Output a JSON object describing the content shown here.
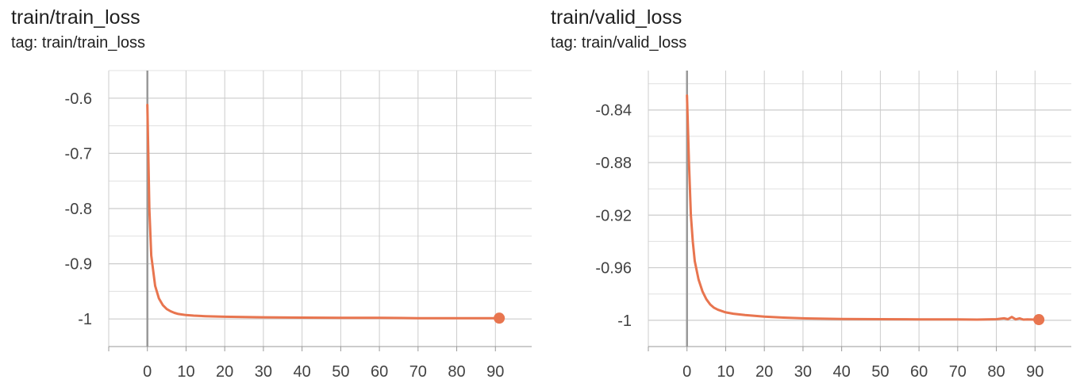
{
  "colors": {
    "series": "#e8754f",
    "grid": "#cccccc",
    "axis": "#999999",
    "zero_line": "#999999"
  },
  "charts": [
    {
      "title": "train/train_loss",
      "subtitle": "tag: train/train_loss"
    },
    {
      "title": "train/valid_loss",
      "subtitle": "tag: train/valid_loss"
    }
  ],
  "chart_data": [
    {
      "type": "line",
      "title": "train/train_loss",
      "subtitle": "tag: train/train_loss",
      "xlabel": "",
      "ylabel": "",
      "grid": true,
      "xlim": [
        -10,
        100
      ],
      "ylim": [
        -1.05,
        -0.55
      ],
      "x_ticks": [
        0,
        10,
        20,
        30,
        40,
        50,
        60,
        70,
        80,
        90
      ],
      "y_ticks": [
        -0.6,
        -0.7,
        -0.8,
        -0.9,
        -1
      ],
      "y_tick_labels": [
        "-0.6",
        "-0.7",
        "-0.8",
        "-0.9",
        "-1"
      ],
      "series": [
        {
          "x": [
            0,
            0.5,
            1,
            2,
            3,
            4,
            5,
            6,
            7,
            8,
            9,
            10,
            12,
            15,
            20,
            25,
            30,
            40,
            50,
            60,
            70,
            80,
            91
          ],
          "y": [
            -0.612,
            -0.8,
            -0.885,
            -0.94,
            -0.963,
            -0.975,
            -0.982,
            -0.986,
            -0.989,
            -0.991,
            -0.992,
            -0.993,
            -0.994,
            -0.995,
            -0.996,
            -0.9965,
            -0.997,
            -0.9975,
            -0.998,
            -0.998,
            -0.9985,
            -0.9985,
            -0.9985
          ],
          "end_marker": true
        }
      ]
    },
    {
      "type": "line",
      "title": "train/valid_loss",
      "subtitle": "tag: train/valid_loss",
      "xlabel": "",
      "ylabel": "",
      "grid": true,
      "xlim": [
        -10,
        100
      ],
      "ylim": [
        -1.02,
        -0.81
      ],
      "x_ticks": [
        0,
        10,
        20,
        30,
        40,
        50,
        60,
        70,
        80,
        90
      ],
      "y_ticks": [
        -0.84,
        -0.88,
        -0.92,
        -0.96,
        -1
      ],
      "y_tick_labels": [
        "-0.84",
        "-0.88",
        "-0.92",
        "-0.96",
        "-1"
      ],
      "series": [
        {
          "x": [
            0,
            0.5,
            1,
            1.5,
            2,
            3,
            4,
            5,
            6,
            7,
            8,
            10,
            12,
            15,
            20,
            25,
            30,
            40,
            50,
            60,
            70,
            75,
            80,
            82,
            83,
            84,
            85,
            86,
            87,
            88,
            90,
            91
          ],
          "y": [
            -0.829,
            -0.88,
            -0.92,
            -0.94,
            -0.955,
            -0.969,
            -0.978,
            -0.984,
            -0.988,
            -0.9905,
            -0.992,
            -0.994,
            -0.995,
            -0.996,
            -0.9972,
            -0.998,
            -0.9985,
            -0.999,
            -0.9992,
            -0.9993,
            -0.9993,
            -0.9995,
            -0.9992,
            -0.9985,
            -0.9992,
            -0.9975,
            -0.9993,
            -0.9985,
            -0.9995,
            -0.9993,
            -0.9995,
            -0.9995
          ],
          "end_marker": true
        }
      ]
    }
  ]
}
